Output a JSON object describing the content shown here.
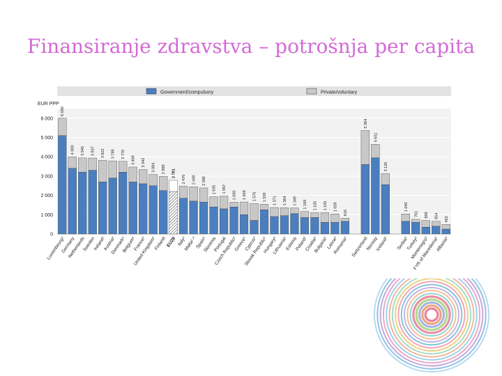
{
  "slide": {
    "title": "Finansiranje zdravstva – potrošnja per capita"
  },
  "chart_data": {
    "type": "bar",
    "stacked": true,
    "ylabel": "EUR PPP",
    "ylim": [
      0,
      6500
    ],
    "yticks": [
      0,
      1000,
      2000,
      3000,
      4000,
      5000,
      6000
    ],
    "ytick_labels": [
      "0",
      "1 000",
      "2 000",
      "3 000",
      "4 000",
      "5 000",
      "6 000"
    ],
    "grid": true,
    "legend_position": "top",
    "series": [
      {
        "name": "Government/compulsory",
        "color": "#4a7ebf"
      },
      {
        "name": "Private/voluntary",
        "color": "#c8c8c8"
      }
    ],
    "categories": [
      {
        "label": "Luxembourg²",
        "total": 6000,
        "total_label": "6 000",
        "gov": 5100
      },
      {
        "label": "Germany",
        "total": 4000,
        "total_label": "4 000",
        "gov": 3400
      },
      {
        "label": "Netherlands",
        "total": 3945,
        "total_label": "3 945",
        "gov": 3200
      },
      {
        "label": "Sweden",
        "total": 3937,
        "total_label": "3 937",
        "gov": 3300
      },
      {
        "label": "Ireland²",
        "total": 3822,
        "total_label": "3 822",
        "gov": 2700
      },
      {
        "label": "Austria²",
        "total": 3789,
        "total_label": "3 789",
        "gov": 2900
      },
      {
        "label": "Denmark²",
        "total": 3770,
        "total_label": "3 770",
        "gov": 3200
      },
      {
        "label": "Belgium²",
        "total": 3469,
        "total_label": "3 469",
        "gov": 2700
      },
      {
        "label": "France²",
        "total": 3342,
        "total_label": "3 342",
        "gov": 2600
      },
      {
        "label": "United Kingdom²",
        "total": 3084,
        "total_label": "3 084",
        "gov": 2500
      },
      {
        "label": "Finland",
        "total": 2988,
        "total_label": "2 988",
        "gov": 2250
      },
      {
        "label": "EU28",
        "total": 2781,
        "total_label": "2 781",
        "gov": 2200,
        "highlight": true
      },
      {
        "label": "Italy²",
        "total": 2476,
        "total_label": "2 476",
        "gov": 1850
      },
      {
        "label": "Malta¹·²",
        "total": 2449,
        "total_label": "2 449",
        "gov": 1700
      },
      {
        "label": "Spain²",
        "total": 2386,
        "total_label": "2 386",
        "gov": 1650
      },
      {
        "label": "Slovenia",
        "total": 1935,
        "total_label": "1 935",
        "gov": 1400
      },
      {
        "label": "Portugal",
        "total": 1967,
        "total_label": "1 967",
        "gov": 1300
      },
      {
        "label": "Czech Republic²",
        "total": 1650,
        "total_label": "1 650",
        "gov": 1400
      },
      {
        "label": "Greece²",
        "total": 1658,
        "total_label": "1 658",
        "gov": 1000
      },
      {
        "label": "Cyprus²",
        "total": 1576,
        "total_label": "1 576",
        "gov": 700
      },
      {
        "label": "Slovak Republic²",
        "total": 1539,
        "total_label": "1 539",
        "gov": 1250
      },
      {
        "label": "Hungary²",
        "total": 1371,
        "total_label": "1 371",
        "gov": 900
      },
      {
        "label": "Lithuania²",
        "total": 1364,
        "total_label": "1 364",
        "gov": 950
      },
      {
        "label": "Estonia",
        "total": 1349,
        "total_label": "1 349",
        "gov": 1050
      },
      {
        "label": "Poland²",
        "total": 1169,
        "total_label": "1 169",
        "gov": 850
      },
      {
        "label": "Croatia²",
        "total": 1105,
        "total_label": "1 105",
        "gov": 850
      },
      {
        "label": "Bulgaria²",
        "total": 1105,
        "total_label": "1 105",
        "gov": 600
      },
      {
        "label": "Latvia²",
        "total": 1039,
        "total_label": "1 039",
        "gov": 600
      },
      {
        "label": "Romania²",
        "total": 816,
        "total_label": "816",
        "gov": 650
      },
      {
        "gap": true
      },
      {
        "label": "Switzerland",
        "total": 5364,
        "total_label": "5 364",
        "gov": 3600
      },
      {
        "label": "Norway",
        "total": 4651,
        "total_label": "4 651",
        "gov": 3950
      },
      {
        "label": "Iceland²",
        "total": 3126,
        "total_label": "3 126",
        "gov": 2550
      },
      {
        "gap": true
      },
      {
        "label": "Serbia³",
        "total": 1040,
        "total_label": "1 040",
        "gov": 650
      },
      {
        "label": "Turkey²",
        "total": 761,
        "total_label": "761",
        "gov": 600
      },
      {
        "label": "Montenegro³",
        "total": 698,
        "total_label": "698",
        "gov": 350
      },
      {
        "label": "FYR of Macedonia³",
        "total": 654,
        "total_label": "654",
        "gov": 400
      },
      {
        "label": "Albania³",
        "total": 492,
        "total_label": "492",
        "gov": 250
      }
    ]
  }
}
